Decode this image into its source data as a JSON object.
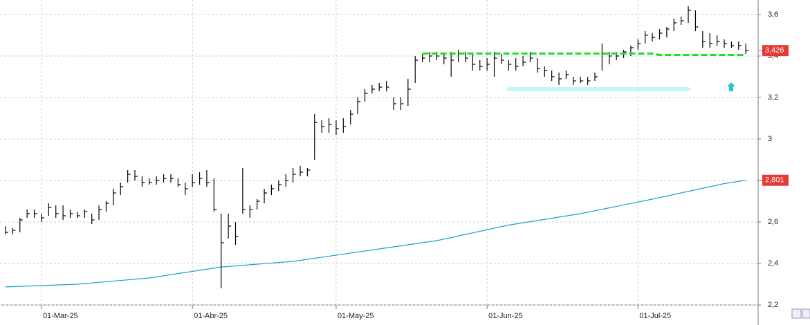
{
  "chart_data": {
    "type": "hlc",
    "categories": [
      null,
      null,
      null,
      null,
      null,
      "01-Mar-25",
      null,
      null,
      null,
      null,
      null,
      null,
      null,
      null,
      null,
      null,
      null,
      null,
      null,
      null,
      null,
      null,
      null,
      null,
      null,
      null,
      "01-Abr-25",
      null,
      null,
      null,
      null,
      null,
      null,
      null,
      null,
      null,
      null,
      null,
      null,
      null,
      null,
      null,
      null,
      null,
      null,
      null,
      "01-May-25",
      null,
      null,
      null,
      null,
      null,
      null,
      null,
      null,
      null,
      null,
      null,
      null,
      null,
      null,
      null,
      null,
      null,
      null,
      null,
      null,
      "01-Jun-25",
      null,
      null,
      null,
      null,
      null,
      null,
      null,
      null,
      null,
      null,
      null,
      null,
      null,
      null,
      null,
      null,
      null,
      null,
      null,
      null,
      "01-Jul-25",
      null,
      null,
      null,
      null,
      null,
      null,
      null,
      null,
      null,
      null,
      null,
      null,
      null,
      null,
      null
    ],
    "high": [
      2.58,
      2.57,
      2.62,
      2.66,
      2.66,
      2.64,
      2.69,
      2.68,
      2.68,
      2.66,
      2.65,
      2.66,
      2.64,
      2.68,
      2.7,
      2.76,
      2.79,
      2.85,
      2.85,
      2.82,
      2.81,
      2.82,
      2.83,
      2.83,
      2.81,
      2.79,
      2.83,
      2.84,
      2.85,
      2.81,
      2.64,
      2.64,
      2.6,
      2.86,
      2.68,
      2.71,
      2.76,
      2.78,
      2.8,
      2.83,
      2.86,
      2.87,
      2.86,
      3.12,
      3.09,
      3.1,
      3.09,
      3.1,
      3.14,
      3.2,
      3.24,
      3.26,
      3.27,
      3.28,
      3.2,
      3.2,
      3.29,
      3.4,
      3.41,
      3.42,
      3.42,
      3.41,
      3.42,
      3.43,
      3.42,
      3.41,
      3.38,
      3.39,
      3.42,
      3.41,
      3.38,
      3.39,
      3.4,
      3.42,
      3.39,
      3.35,
      3.33,
      3.32,
      3.33,
      3.3,
      3.3,
      3.3,
      3.32,
      3.46,
      3.42,
      3.42,
      3.43,
      3.45,
      3.48,
      3.52,
      3.51,
      3.53,
      3.54,
      3.58,
      3.59,
      3.64,
      3.62,
      3.52,
      3.51,
      3.5,
      3.48,
      3.47,
      3.47,
      3.46
    ],
    "low": [
      2.54,
      2.54,
      2.55,
      2.62,
      2.62,
      2.6,
      2.63,
      2.62,
      2.61,
      2.62,
      2.62,
      2.62,
      2.59,
      2.61,
      2.65,
      2.68,
      2.73,
      2.79,
      2.8,
      2.77,
      2.78,
      2.78,
      2.79,
      2.79,
      2.77,
      2.73,
      2.77,
      2.78,
      2.77,
      2.65,
      2.28,
      2.52,
      2.49,
      2.64,
      2.62,
      2.66,
      2.69,
      2.73,
      2.75,
      2.77,
      2.79,
      2.82,
      2.82,
      2.9,
      3.03,
      3.03,
      3.02,
      3.03,
      3.07,
      3.12,
      3.18,
      3.22,
      3.23,
      3.23,
      3.14,
      3.14,
      3.16,
      3.27,
      3.37,
      3.37,
      3.38,
      3.36,
      3.3,
      3.37,
      3.37,
      3.33,
      3.33,
      3.33,
      3.3,
      3.36,
      3.33,
      3.33,
      3.35,
      3.37,
      3.32,
      3.3,
      3.28,
      3.26,
      3.29,
      3.26,
      3.27,
      3.26,
      3.28,
      3.33,
      3.36,
      3.38,
      3.39,
      3.4,
      3.43,
      3.46,
      3.47,
      3.48,
      3.49,
      3.52,
      3.55,
      3.56,
      3.52,
      3.44,
      3.44,
      3.45,
      3.44,
      3.44,
      3.43,
      3.41
    ],
    "close": [
      2.55,
      2.56,
      2.61,
      2.64,
      2.64,
      2.62,
      2.67,
      2.64,
      2.63,
      2.64,
      2.63,
      2.65,
      2.61,
      2.66,
      2.69,
      2.74,
      2.77,
      2.83,
      2.82,
      2.79,
      2.79,
      2.8,
      2.81,
      2.81,
      2.78,
      2.76,
      2.79,
      2.81,
      2.79,
      2.66,
      2.5,
      2.58,
      2.53,
      2.66,
      2.66,
      2.7,
      2.74,
      2.76,
      2.78,
      2.8,
      2.83,
      2.84,
      2.85,
      3.08,
      3.06,
      3.07,
      3.05,
      3.06,
      3.12,
      3.18,
      3.22,
      3.24,
      3.25,
      3.25,
      3.17,
      3.17,
      3.24,
      3.38,
      3.39,
      3.4,
      3.4,
      3.39,
      3.38,
      3.41,
      3.39,
      3.36,
      3.35,
      3.36,
      3.39,
      3.38,
      3.36,
      3.35,
      3.37,
      3.39,
      3.34,
      3.33,
      3.3,
      3.29,
      3.31,
      3.28,
      3.28,
      3.28,
      3.3,
      3.41,
      3.4,
      3.4,
      3.42,
      3.44,
      3.46,
      3.5,
      3.49,
      3.51,
      3.53,
      3.56,
      3.57,
      3.62,
      3.54,
      3.47,
      3.46,
      3.47,
      3.46,
      3.45,
      3.45,
      3.426
    ],
    "color": "#000000",
    "moving_average": {
      "color": "#1aa0d0",
      "x": [
        0,
        10,
        20,
        30,
        40,
        50,
        60,
        70,
        80,
        90,
        100,
        103
      ],
      "values": [
        2.287,
        2.3,
        2.33,
        2.383,
        2.41,
        2.46,
        2.51,
        2.585,
        2.64,
        2.71,
        2.785,
        2.801
      ]
    },
    "support": {
      "color": "#22dd22",
      "x": [
        58,
        90,
        91,
        103
      ],
      "values": [
        3.412,
        3.412,
        3.405,
        3.405
      ]
    },
    "zone": {
      "color": "#c8f4f8",
      "x": [
        70,
        95
      ],
      "values": [
        3.24,
        3.24
      ]
    },
    "price_labels": [
      {
        "value": 3.426,
        "label": "3,426"
      },
      {
        "value": 2.801,
        "label": "2,801"
      }
    ],
    "ylim": [
      2.2,
      3.67
    ],
    "yticks": [
      {
        "value": 2.2,
        "label": "2,2"
      },
      {
        "value": 2.4,
        "label": "2,4"
      },
      {
        "value": 2.6,
        "label": "2,6"
      },
      {
        "value": 2.8,
        "label": "2,8"
      },
      3,
      {
        "value": 3.2,
        "label": "3,2"
      },
      {
        "value": 3.4,
        "label": "3,4"
      },
      {
        "value": 3.6,
        "label": "3,6"
      }
    ],
    "grid": true
  }
}
